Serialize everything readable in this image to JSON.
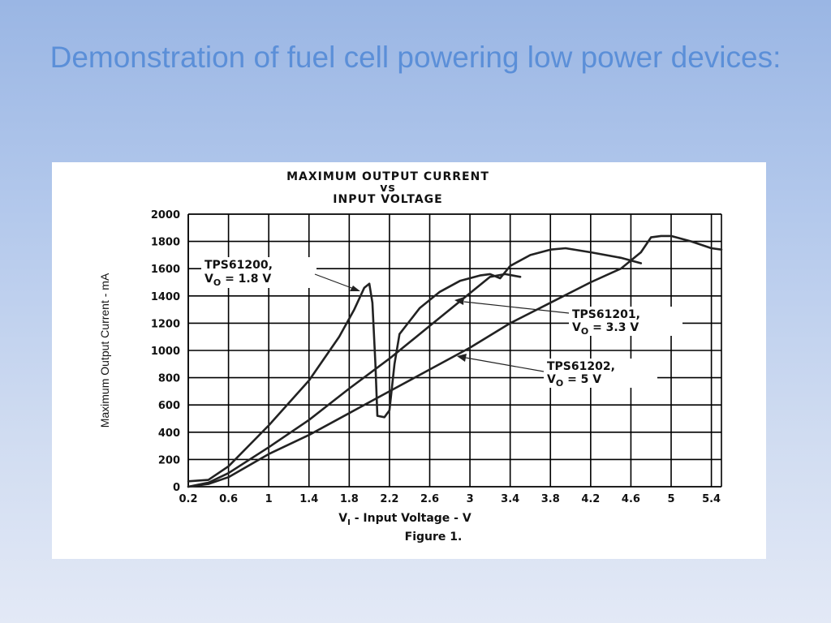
{
  "slide": {
    "title": "Demonstration of fuel cell powering low power devices:"
  },
  "chart_data": {
    "type": "line",
    "title_line1": "MAXIMUM OUTPUT CURRENT",
    "title_line2": "vs",
    "title_line3": "INPUT VOLTAGE",
    "xlabel_main": "V",
    "xlabel_sub": "I",
    "xlabel_rest": " - Input Voltage - V",
    "ylabel": "Maximum Output Current - mA",
    "caption": "Figure 1.",
    "xlim": [
      0.2,
      5.5
    ],
    "ylim": [
      0,
      2000
    ],
    "x_ticks": [
      "0.2",
      "0.6",
      "1",
      "1.4",
      "1.8",
      "2.2",
      "2.6",
      "3",
      "3.4",
      "3.8",
      "4.2",
      "4.6",
      "5",
      "5.4"
    ],
    "y_ticks": [
      "0",
      "200",
      "400",
      "600",
      "800",
      "1000",
      "1200",
      "1400",
      "1600",
      "1800",
      "2000"
    ],
    "grid": true,
    "series": [
      {
        "name": "TPS61200, VO = 1.8 V",
        "label_line1": "TPS61200,",
        "label_v": "V",
        "label_sub": "O",
        "label_rest": " = 1.8 V",
        "points": [
          [
            0.2,
            40
          ],
          [
            0.4,
            50
          ],
          [
            0.6,
            150
          ],
          [
            1.0,
            450
          ],
          [
            1.4,
            780
          ],
          [
            1.7,
            1100
          ],
          [
            1.85,
            1300
          ],
          [
            1.95,
            1460
          ],
          [
            2.0,
            1490
          ],
          [
            2.03,
            1350
          ],
          [
            2.06,
            900
          ],
          [
            2.08,
            520
          ],
          [
            2.15,
            510
          ],
          [
            2.2,
            560
          ],
          [
            2.25,
            900
          ],
          [
            2.3,
            1120
          ],
          [
            2.5,
            1310
          ],
          [
            2.7,
            1430
          ],
          [
            2.9,
            1510
          ],
          [
            3.1,
            1550
          ],
          [
            3.2,
            1560
          ],
          [
            3.3,
            1530
          ],
          [
            3.4,
            1620
          ],
          [
            3.6,
            1700
          ],
          [
            3.8,
            1740
          ],
          [
            3.95,
            1750
          ],
          [
            4.2,
            1720
          ],
          [
            4.5,
            1680
          ],
          [
            4.7,
            1640
          ]
        ]
      },
      {
        "name": "TPS61201, VO = 3.3 V",
        "label_line1": "TPS61201,",
        "label_v": "V",
        "label_sub": "O",
        "label_rest": " = 3.3 V",
        "points": [
          [
            0.2,
            0
          ],
          [
            0.4,
            30
          ],
          [
            0.6,
            100
          ],
          [
            1.0,
            290
          ],
          [
            1.4,
            490
          ],
          [
            1.8,
            720
          ],
          [
            2.2,
            940
          ],
          [
            2.6,
            1180
          ],
          [
            3.0,
            1420
          ],
          [
            3.2,
            1540
          ],
          [
            3.35,
            1560
          ],
          [
            3.5,
            1540
          ]
        ]
      },
      {
        "name": "TPS61202, VO = 5 V",
        "label_line1": "TPS61202,",
        "label_v": "V",
        "label_sub": "O",
        "label_rest": " = 5 V",
        "points": [
          [
            0.2,
            0
          ],
          [
            0.4,
            20
          ],
          [
            0.6,
            70
          ],
          [
            1.0,
            240
          ],
          [
            1.4,
            380
          ],
          [
            1.8,
            540
          ],
          [
            2.2,
            700
          ],
          [
            2.6,
            860
          ],
          [
            3.0,
            1020
          ],
          [
            3.4,
            1200
          ],
          [
            3.8,
            1350
          ],
          [
            4.2,
            1500
          ],
          [
            4.5,
            1600
          ],
          [
            4.7,
            1720
          ],
          [
            4.8,
            1830
          ],
          [
            4.9,
            1840
          ],
          [
            5.0,
            1840
          ],
          [
            5.2,
            1800
          ],
          [
            5.4,
            1750
          ],
          [
            5.5,
            1740
          ]
        ]
      }
    ]
  }
}
